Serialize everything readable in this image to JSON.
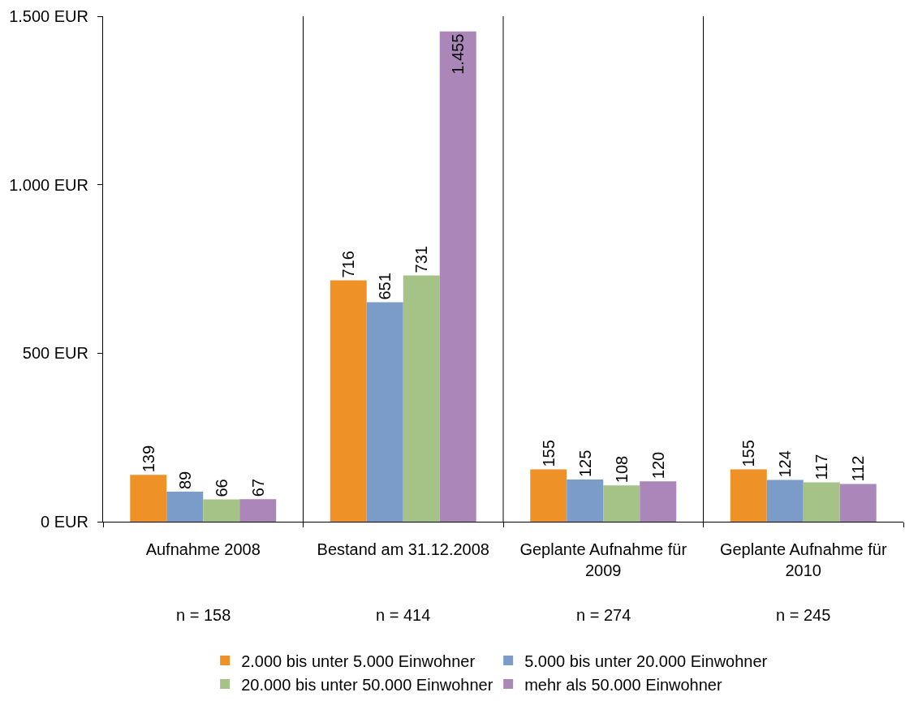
{
  "chart_data": {
    "type": "bar",
    "categories": [
      "Aufnahme 2008",
      "Bestand am 31.12.2008",
      "Geplante Aufnahme für 2009",
      "Geplante Aufnahme für 2010"
    ],
    "series": [
      {
        "name": "2.000 bis unter 5.000 Einwohner",
        "color": "#ee9228",
        "values": [
          139,
          716,
          155,
          155
        ],
        "value_labels": [
          "139",
          "716",
          "155",
          "155"
        ]
      },
      {
        "name": "5.000 bis unter 20.000 Einwohner",
        "color": "#7b9cc8",
        "values": [
          89,
          651,
          125,
          124
        ],
        "value_labels": [
          "89",
          "651",
          "125",
          "124"
        ]
      },
      {
        "name": "20.000 bis unter 50.000 Einwohner",
        "color": "#a5c386",
        "values": [
          66,
          731,
          108,
          117
        ],
        "value_labels": [
          "66",
          "731",
          "108",
          "117"
        ]
      },
      {
        "name": "mehr als 50.000 Einwohner",
        "color": "#aa86b9",
        "values": [
          67,
          1455,
          120,
          112
        ],
        "value_labels": [
          "67",
          "1.455",
          "120",
          "112"
        ]
      }
    ],
    "ylim": [
      0,
      1500
    ],
    "yticks": [
      {
        "value": 0,
        "label": "0 EUR"
      },
      {
        "value": 500,
        "label": "500 EUR"
      },
      {
        "value": 1000,
        "label": "1.000 EUR"
      },
      {
        "value": 1500,
        "label": "1.500 EUR"
      }
    ],
    "grid": "x",
    "legend": "bottom",
    "annotations": [
      "n = 158",
      "n = 414",
      "n = 274",
      "n = 245"
    ]
  }
}
